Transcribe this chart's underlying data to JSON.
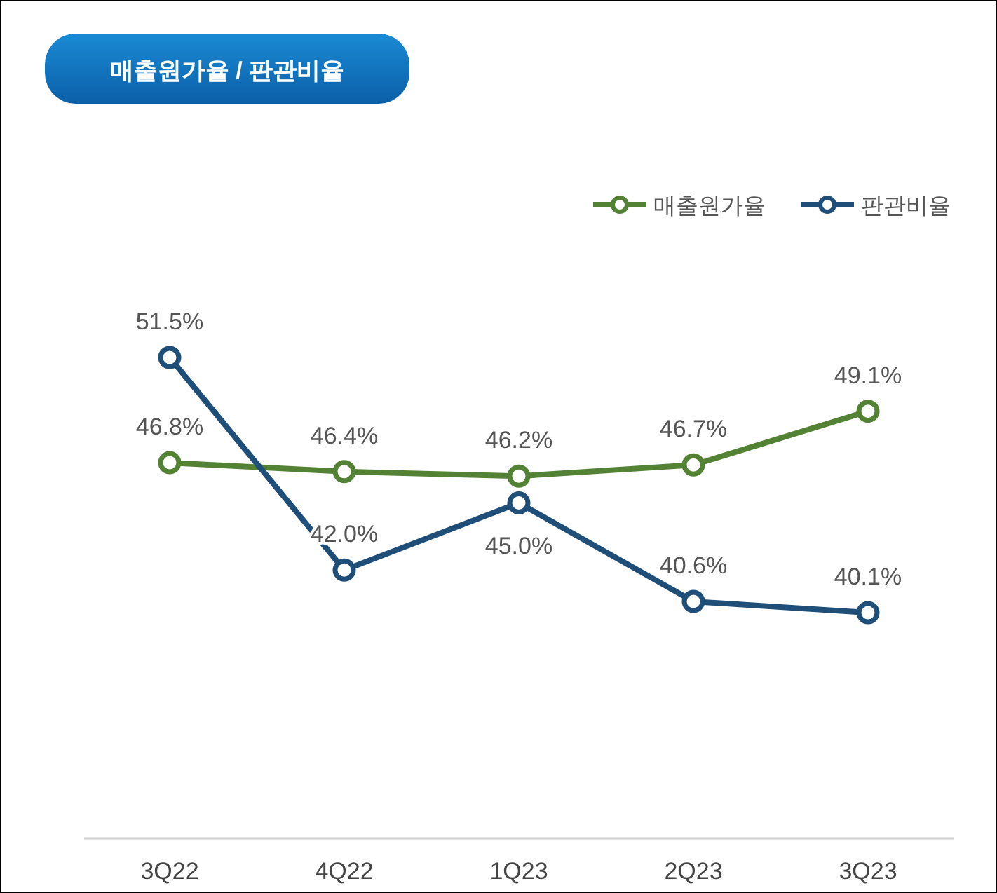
{
  "chart_data": {
    "type": "line",
    "title": "매출원가율 / 판관비율",
    "categories": [
      "3Q22",
      "4Q22",
      "1Q23",
      "2Q23",
      "3Q23"
    ],
    "series": [
      {
        "name": "매출원가율",
        "color": "#548235",
        "values": [
          46.8,
          46.4,
          46.2,
          46.7,
          49.1
        ],
        "value_labels": [
          "46.8%",
          "46.4%",
          "46.2%",
          "46.7%",
          "49.1%"
        ]
      },
      {
        "name": "판관비율",
        "color": "#1f4e79",
        "values": [
          51.5,
          42.0,
          45.0,
          40.6,
          40.1
        ],
        "value_labels": [
          "51.5%",
          "42.0%",
          "45.0%",
          "40.6%",
          "40.1%"
        ]
      }
    ],
    "legend": "top right",
    "marker": "circle",
    "line_style": "solid"
  }
}
